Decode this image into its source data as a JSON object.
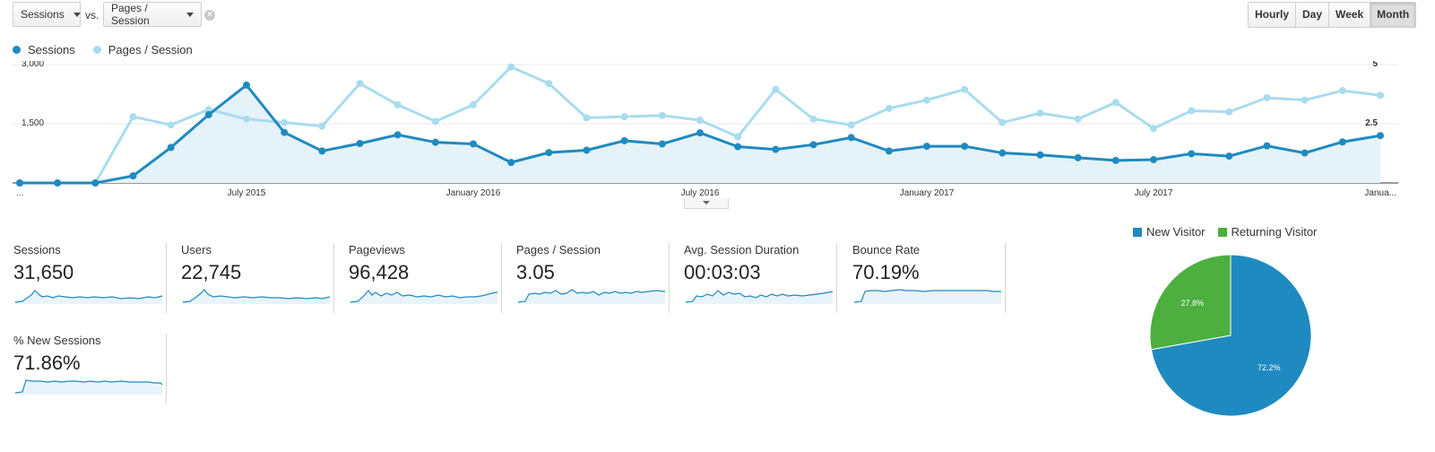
{
  "controls": {
    "metric1": "Sessions",
    "vs": "vs.",
    "metric2": "Pages / Session",
    "clear": "×",
    "granularity": [
      "Hourly",
      "Day",
      "Week",
      "Month"
    ],
    "active_granularity": "Month"
  },
  "legend": {
    "series1": "Sessions",
    "series2": "Pages / Session",
    "color1": "#1f8ac0",
    "color2": "#a9dcee"
  },
  "chart_data": {
    "type": "line",
    "x": [
      "2015-01",
      "2015-02",
      "2015-03",
      "2015-04",
      "2015-05",
      "2015-06",
      "2015-07",
      "2015-08",
      "2015-09",
      "2015-10",
      "2015-11",
      "2015-12",
      "2016-01",
      "2016-02",
      "2016-03",
      "2016-04",
      "2016-05",
      "2016-06",
      "2016-07",
      "2016-08",
      "2016-09",
      "2016-10",
      "2016-11",
      "2016-12",
      "2017-01",
      "2017-02",
      "2017-03",
      "2017-04",
      "2017-05",
      "2017-06",
      "2017-07",
      "2017-08",
      "2017-09",
      "2017-10",
      "2017-11",
      "2017-12",
      "2018-01"
    ],
    "x_tick_labels": [
      "...",
      "July 2015",
      "January 2016",
      "July 2016",
      "January 2017",
      "July 2017",
      "Janua..."
    ],
    "series": [
      {
        "name": "Sessions",
        "axis": "left",
        "values": [
          0,
          0,
          0,
          180,
          900,
          1730,
          2480,
          1280,
          810,
          1000,
          1220,
          1030,
          990,
          520,
          770,
          830,
          1070,
          990,
          1270,
          920,
          850,
          970,
          1150,
          810,
          930,
          930,
          760,
          710,
          640,
          570,
          590,
          740,
          680,
          940,
          760,
          1040,
          1200
        ]
      },
      {
        "name": "Pages / Session",
        "axis": "right",
        "values": [
          0,
          0,
          0,
          2.8,
          2.45,
          3.1,
          2.7,
          2.55,
          2.4,
          4.2,
          3.3,
          2.6,
          3.3,
          4.9,
          4.2,
          2.75,
          2.8,
          2.85,
          2.65,
          1.95,
          3.95,
          2.7,
          2.45,
          3.15,
          3.5,
          3.95,
          2.55,
          2.95,
          2.7,
          3.4,
          2.3,
          3.05,
          3.0,
          3.6,
          3.5,
          3.9,
          3.7
        ]
      }
    ],
    "y_left_ticks": [
      "3,000",
      "1,500"
    ],
    "y_left_range": [
      0,
      3000
    ],
    "y_right_ticks": [
      "5",
      "2.5"
    ],
    "y_right_range": [
      0,
      5
    ],
    "grid": true
  },
  "metrics": [
    {
      "name": "Sessions",
      "value": "31,650"
    },
    {
      "name": "Users",
      "value": "22,745"
    },
    {
      "name": "Pageviews",
      "value": "96,428"
    },
    {
      "name": "Pages / Session",
      "value": "3.05"
    },
    {
      "name": "Avg. Session Duration",
      "value": "00:03:03"
    },
    {
      "name": "Bounce Rate",
      "value": "70.19%"
    },
    {
      "name": "% New Sessions",
      "value": "71.86%"
    }
  ],
  "pie": {
    "legend": [
      "New Visitor",
      "Returning Visitor"
    ],
    "colors": [
      "#1f8ac0",
      "#4caf3f"
    ],
    "values": [
      72.2,
      27.8
    ],
    "labels": [
      "72.2%",
      "27.8%"
    ]
  }
}
